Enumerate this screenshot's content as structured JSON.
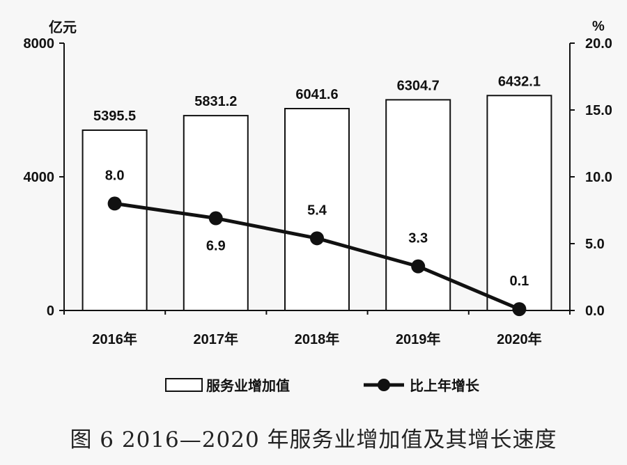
{
  "chart_data": {
    "type": "bar",
    "categories": [
      "2016年",
      "2017年",
      "2018年",
      "2019年",
      "2020年"
    ],
    "series": [
      {
        "name": "服务业增加值",
        "type": "bar",
        "axis": "left",
        "values": [
          5395.5,
          5831.2,
          6041.6,
          6304.7,
          6432.1
        ],
        "labels": [
          "5395.5",
          "5831.2",
          "6041.6",
          "6304.7",
          "6432.1"
        ]
      },
      {
        "name": "比上年增长",
        "type": "line",
        "axis": "right",
        "values": [
          8.0,
          6.9,
          5.4,
          3.3,
          0.1
        ],
        "labels": [
          "8.0",
          "6.9",
          "5.4",
          "3.3",
          "0.1"
        ]
      }
    ],
    "y_left": {
      "unit": "亿元",
      "range": [
        0,
        8000
      ],
      "ticks": [
        "0",
        "4000",
        "8000"
      ],
      "tick_values": [
        0,
        4000,
        8000
      ]
    },
    "y_right": {
      "unit": "%",
      "range": [
        0,
        20
      ],
      "ticks": [
        "0.0",
        "5.0",
        "10.0",
        "15.0",
        "20.0"
      ],
      "tick_values": [
        0,
        5,
        10,
        15,
        20
      ]
    },
    "legend": {
      "placement": "bottom",
      "bar_label": "服务业增加值",
      "line_label": "比上年增长"
    },
    "grid": false,
    "colors": {
      "bar_fill": "#ffffff",
      "bar_stroke": "#111111",
      "line": "#111111",
      "axis": "#111111"
    }
  },
  "caption": "图 6  2016—2020 年服务业增加值及其增长速度"
}
